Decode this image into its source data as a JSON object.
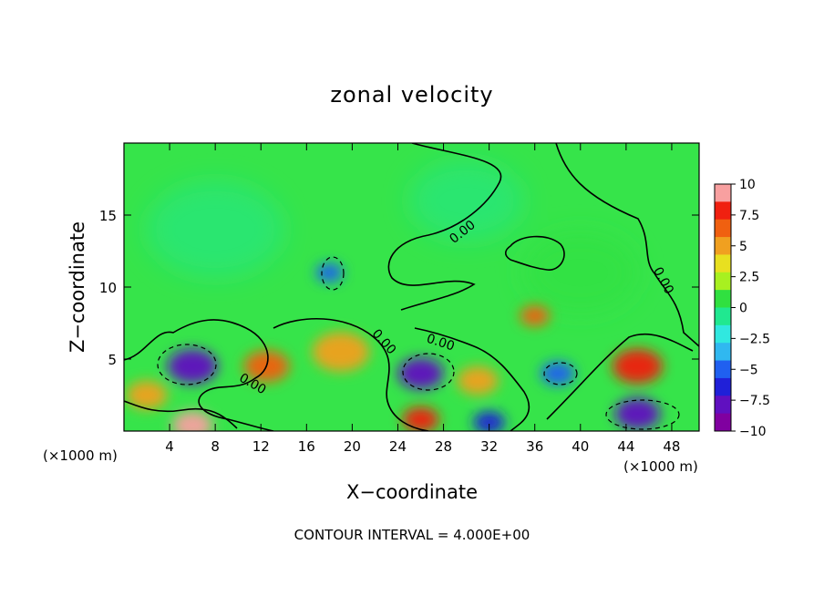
{
  "chart_data": {
    "type": "heatmap",
    "title": "zonal velocity",
    "xlabel": "X−coordinate",
    "ylabel": "Z−coordinate",
    "x_unit_left": "(×1000 m)",
    "x_unit_right": "(×1000 m)",
    "xlim": [
      0,
      50.4
    ],
    "ylim": [
      0,
      20
    ],
    "x_ticks": [
      4,
      8,
      12,
      16,
      20,
      24,
      28,
      32,
      36,
      40,
      44,
      48
    ],
    "y_ticks": [
      5,
      10,
      15
    ],
    "colorbar": {
      "ticks": [
        "10",
        "7.5",
        "5",
        "2.5",
        "0",
        "−2.5",
        "−5",
        "−7.5",
        "−10"
      ],
      "range": [
        -10,
        10
      ],
      "colors": [
        "#f8a0a0",
        "#f02010",
        "#f06010",
        "#f0a020",
        "#e8e020",
        "#a8f020",
        "#30e040",
        "#20e890",
        "#30e8e0",
        "#30b8f0",
        "#2060f0",
        "#2020d8",
        "#6010c0",
        "#8000a0"
      ]
    },
    "contour_labels": [
      "0.00",
      "0.00",
      "0.00",
      "0.00",
      "0.00"
    ],
    "contour_interval_label": "CONTOUR INTERVAL = 4.000E+00",
    "cells": [
      {
        "x": 6,
        "z": 4.5,
        "value": -9,
        "r": 2.2
      },
      {
        "x": 12.5,
        "z": 4.5,
        "value": 7,
        "r": 2.0
      },
      {
        "x": 19,
        "z": 5.5,
        "value": 6,
        "r": 2.5
      },
      {
        "x": 26,
        "z": 4,
        "value": -8,
        "r": 2.0
      },
      {
        "x": 31,
        "z": 3.5,
        "value": 5,
        "r": 1.8
      },
      {
        "x": 36,
        "z": 8,
        "value": 7,
        "r": 1.3
      },
      {
        "x": 38,
        "z": 4,
        "value": -6,
        "r": 1.5
      },
      {
        "x": 45,
        "z": 4.5,
        "value": 8,
        "r": 2.2
      },
      {
        "x": 45,
        "z": 1.2,
        "value": -9,
        "r": 2.0
      },
      {
        "x": 6,
        "z": 0.4,
        "value": 10,
        "r": 1.8
      },
      {
        "x": 26,
        "z": 0.8,
        "value": 9,
        "r": 1.6
      },
      {
        "x": 2,
        "z": 2.5,
        "value": 5,
        "r": 1.8
      },
      {
        "x": 32,
        "z": 0.6,
        "value": -7,
        "r": 1.4
      },
      {
        "x": 18,
        "z": 11,
        "value": -5,
        "r": 1.2
      },
      {
        "x": 8,
        "z": 14,
        "value": 0,
        "r": 6.0
      },
      {
        "x": 30,
        "z": 16,
        "value": -1.5,
        "r": 5.0
      },
      {
        "x": 40,
        "z": 11,
        "value": 1,
        "r": 5.0
      }
    ]
  }
}
